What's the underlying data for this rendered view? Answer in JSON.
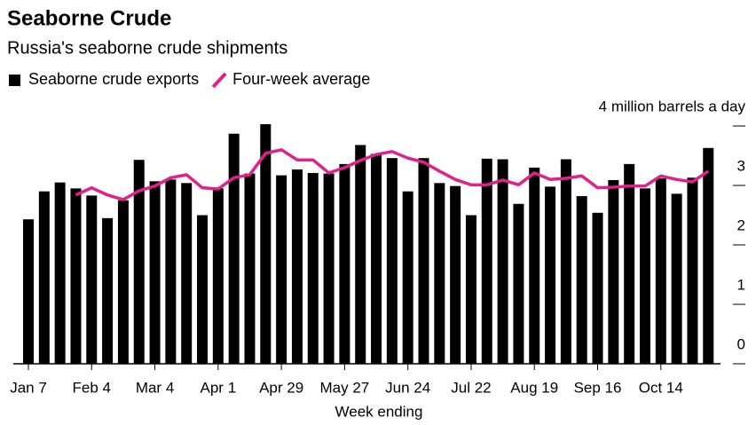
{
  "chart_data": {
    "type": "bar",
    "title": "Seaborne Crude",
    "subtitle": "Russia's seaborne crude shipments",
    "x_label": "Week ending",
    "categories": [
      "Jan 7",
      null,
      null,
      null,
      "Feb 4",
      null,
      null,
      null,
      "Mar 4",
      null,
      null,
      null,
      "Apr 1",
      null,
      null,
      null,
      "Apr 29",
      null,
      null,
      null,
      "May 27",
      null,
      null,
      null,
      "Jun 24",
      null,
      null,
      null,
      "Jul 22",
      null,
      null,
      null,
      "Aug 19",
      null,
      null,
      null,
      "Sep 16",
      null,
      null,
      null,
      "Oct 14",
      null,
      null,
      null
    ],
    "series": [
      {
        "name": "Seaborne crude exports",
        "type": "bar",
        "color": "#000000",
        "values": [
          2.43,
          2.9,
          3.05,
          2.95,
          2.83,
          2.45,
          2.75,
          3.43,
          3.07,
          3.1,
          3.04,
          2.5,
          2.95,
          3.87,
          3.2,
          4.03,
          3.17,
          3.27,
          3.21,
          3.2,
          3.36,
          3.68,
          3.53,
          3.46,
          2.9,
          3.46,
          3.04,
          2.99,
          2.5,
          3.45,
          3.44,
          2.69,
          3.3,
          2.98,
          3.44,
          2.82,
          2.54,
          3.09,
          3.36,
          2.95,
          3.12,
          2.86,
          3.13,
          3.63
        ]
      },
      {
        "name": "Four-week average",
        "type": "line",
        "color": "#e0218a",
        "values": [
          null,
          null,
          null,
          2.84,
          2.96,
          2.84,
          2.76,
          2.91,
          2.99,
          3.13,
          3.18,
          2.96,
          2.94,
          3.13,
          3.18,
          3.54,
          3.6,
          3.43,
          3.43,
          3.21,
          3.3,
          3.42,
          3.52,
          3.57,
          3.46,
          3.39,
          3.24,
          3.1,
          3.01,
          3.01,
          3.09,
          3.01,
          3.21,
          3.1,
          3.12,
          3.16,
          2.96,
          2.97,
          2.99,
          2.99,
          3.16,
          3.1,
          3.06,
          3.24
        ]
      }
    ],
    "ylim": [
      0,
      4
    ],
    "yticks": [
      0,
      1,
      2,
      3,
      {
        "value": 4,
        "label": "4 million barrels a day"
      }
    ]
  }
}
